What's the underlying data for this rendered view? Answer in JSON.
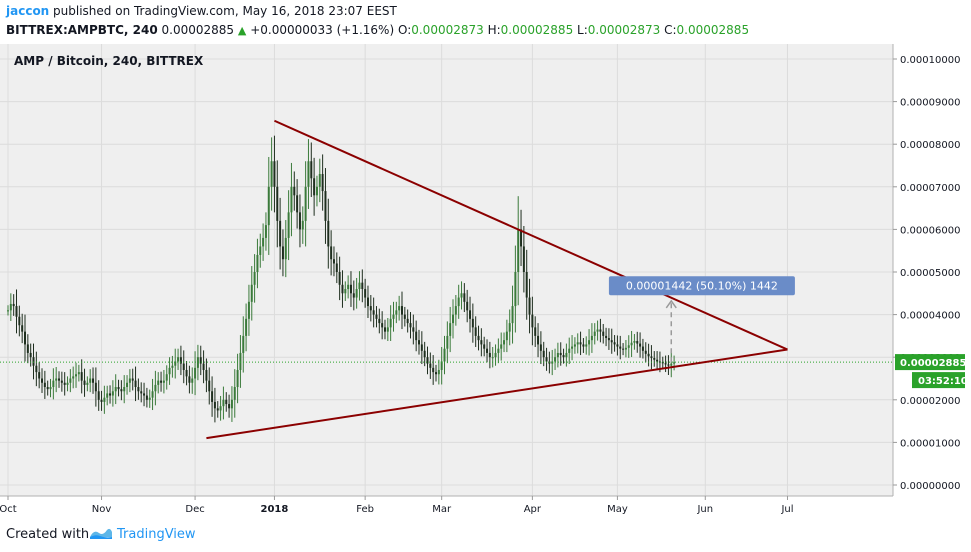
{
  "header": {
    "author": "jaccon",
    "published": " published on TradingView.com, May 16, 2018 23:07 EEST",
    "symbol_line": "BITTREX:AMPBTC, 240",
    "last": "0.00002885",
    "change": "+0.00000033 (+1.16%)",
    "o_label": "O:",
    "o_value": "0.00002873",
    "h_label": "H:",
    "h_value": "0.00002885",
    "l_label": "L:",
    "l_value": "0.00002873",
    "c_label": "C:",
    "c_value": "0.00002885"
  },
  "chart_title": "AMP / Bitcoin, 240, BITTREX",
  "footer": {
    "created_with": "Created with",
    "brand": "TradingView"
  },
  "colors": {
    "trendline": "#8b0000",
    "candle_up": "#3a7a3a",
    "candle_down": "#1e2e1e",
    "price_tag": "#2aa22a",
    "measure_box": "#6a8cc8",
    "pane_bg": "#efefef"
  },
  "chart_data": {
    "type": "line",
    "title": "AMP / Bitcoin, 240, BITTREX",
    "x_ticks": [
      "Oct",
      "Nov",
      "Dec",
      "2018",
      "Feb",
      "Mar",
      "Apr",
      "May",
      "Jun",
      "Jul"
    ],
    "y_ticks": [
      "0.00000000",
      "0.00001000",
      "0.00002000",
      "0.00003000",
      "0.00004000",
      "0.00005000",
      "0.00006000",
      "0.00007000",
      "0.00008000",
      "0.00009000",
      "0.00010000"
    ],
    "ylim": [
      0,
      0.0001
    ],
    "x_index_range": [
      0,
      290
    ],
    "series": [
      {
        "values": [
          4.1e-05,
          4.25e-05,
          4.2e-05,
          3.95e-05,
          3.75e-05,
          3.6e-05,
          3.3e-05,
          3.1e-05,
          3e-05,
          2.8e-05,
          2.65e-05,
          2.5e-05,
          2.4e-05,
          2.3e-05,
          2.25e-05,
          2.3e-05,
          2.45e-05,
          2.5e-05,
          2.45e-05,
          2.4e-05,
          2.35e-05,
          2.4e-05,
          2.5e-05,
          2.55e-05,
          2.6e-05,
          2.65e-05,
          2.45e-05,
          2.35e-05,
          2.4e-05,
          2.5e-05,
          2.4e-05,
          2.2e-05,
          2e-05,
          1.95e-05,
          2.05e-05,
          2.15e-05,
          2.1e-05,
          2.2e-05,
          2.3e-05,
          2.25e-05,
          2.2e-05,
          2.3e-05,
          2.4e-05,
          2.5e-05,
          2.45e-05,
          2.3e-05,
          2.2e-05,
          2.15e-05,
          2.1e-05,
          2e-05,
          2.05e-05,
          2.2e-05,
          2.35e-05,
          2.45e-05,
          2.4e-05,
          2.45e-05,
          2.6e-05,
          2.75e-05,
          2.8e-05,
          2.9e-05,
          3e-05,
          2.85e-05,
          2.7e-05,
          2.55e-05,
          2.4e-05,
          2.5e-05,
          2.75e-05,
          3e-05,
          2.85e-05,
          2.7e-05,
          2.45e-05,
          2.2e-05,
          1.95e-05,
          1.8e-05,
          1.75e-05,
          1.85e-05,
          2e-05,
          1.9e-05,
          1.8e-05,
          2e-05,
          2.3e-05,
          2.7e-05,
          3.1e-05,
          3.5e-05,
          3.9e-05,
          4.3e-05,
          4.7e-05,
          5e-05,
          5.4e-05,
          5.6e-05,
          5.8e-05,
          6.1e-05,
          7e-05,
          7.6e-05,
          7e-05,
          6.2e-05,
          5.6e-05,
          5.3e-05,
          5.8e-05,
          6.4e-05,
          7e-05,
          6.8e-05,
          6.4e-05,
          6e-05,
          6.2e-05,
          7e-05,
          7.6e-05,
          7.2e-05,
          6.8e-05,
          7e-05,
          7.3e-05,
          6.9e-05,
          6.2e-05,
          5.6e-05,
          5.3e-05,
          5.2e-05,
          5e-05,
          4.7e-05,
          4.5e-05,
          4.6e-05,
          4.7e-05,
          4.5e-05,
          4.4e-05,
          4.6e-05,
          4.75e-05,
          4.6e-05,
          4.4e-05,
          4.2e-05,
          4.1e-05,
          4e-05,
          3.9e-05,
          3.8e-05,
          3.7e-05,
          3.6e-05,
          3.7e-05,
          3.9e-05,
          4e-05,
          4.1e-05,
          4.2e-05,
          4e-05,
          3.9e-05,
          3.8e-05,
          3.7e-05,
          3.6e-05,
          3.4e-05,
          3.3e-05,
          3.15e-05,
          3e-05,
          2.85e-05,
          2.75e-05,
          2.65e-05,
          2.6e-05,
          2.7e-05,
          2.9e-05,
          3.2e-05,
          3.5e-05,
          3.8e-05,
          4e-05,
          4.2e-05,
          4.4e-05,
          4.5e-05,
          4.3e-05,
          4.1e-05,
          3.9e-05,
          3.7e-05,
          3.5e-05,
          3.4e-05,
          3.3e-05,
          3.2e-05,
          3.1e-05,
          3e-05,
          3e-05,
          3.1e-05,
          3.2e-05,
          3.3e-05,
          3.4e-05,
          3.6e-05,
          3.8e-05,
          4.2e-05,
          5e-05,
          6e-05,
          5.6e-05,
          5e-05,
          4.4e-05,
          4e-05,
          3.7e-05,
          3.5e-05,
          3.3e-05,
          3.15e-05,
          3e-05,
          2.9e-05,
          2.85e-05,
          2.9e-05,
          3e-05,
          3.1e-05,
          3.05e-05,
          3e-05,
          3.1e-05,
          3.2e-05,
          3.25e-05,
          3.3e-05,
          3.35e-05,
          3.3e-05,
          3.25e-05,
          3.3e-05,
          3.4e-05,
          3.5e-05,
          3.6e-05,
          3.65e-05,
          3.6e-05,
          3.5e-05,
          3.45e-05,
          3.4e-05,
          3.35e-05,
          3.3e-05,
          3.25e-05,
          3.2e-05,
          3.18e-05,
          3.22e-05,
          3.28e-05,
          3.34e-05,
          3.38e-05,
          3.32e-05,
          3.25e-05,
          3.15e-05,
          3.08e-05,
          3.02e-05,
          2.98e-05,
          2.94e-05,
          2.9e-05,
          2.88e-05,
          2.86e-05,
          2.83e-05,
          2.8e-05,
          2.85e-05,
          2.88e-05
        ]
      }
    ],
    "annotations": {
      "trendlines": [
        {
          "from": {
            "x": 94,
            "y": 8.55e-05
          },
          "to": {
            "x": 275,
            "y": 3.18e-05
          }
        },
        {
          "from": {
            "x": 70,
            "y": 1.1e-05
          },
          "to": {
            "x": 275,
            "y": 3.18e-05
          }
        }
      ],
      "measure_label": "0.00001442 (50.10%) 1442",
      "measure_arrow": {
        "x": 234,
        "from_y": 2.88e-05,
        "to_y": 4.32e-05
      },
      "last_price_label": "0.00002885",
      "countdown_label": "03:52:10",
      "last_price": 2.885e-05
    }
  }
}
